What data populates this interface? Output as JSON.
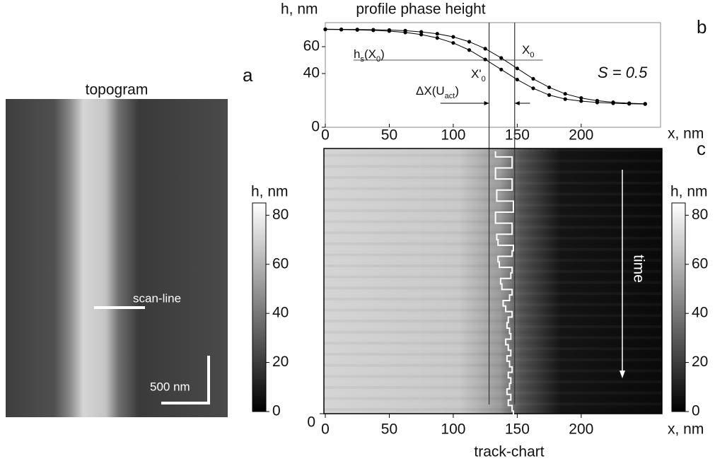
{
  "panel_labels": [
    "a",
    "b",
    "c"
  ],
  "topogram": {
    "title": "topogram",
    "scan_label": "scan-line",
    "scale_label": "500 nm"
  },
  "chart_data": [
    {
      "type": "line",
      "title": "profile phase height",
      "y_label": "h, nm",
      "x_label": "x, nm",
      "x": [
        0,
        12.5,
        25,
        37.5,
        50,
        62.5,
        75,
        87.5,
        100,
        112.5,
        125,
        137.5,
        150,
        162.5,
        175,
        187.5,
        200,
        212.5,
        225,
        237.5,
        250
      ],
      "series": [
        {
          "color": "#000000",
          "values": [
            73.0,
            72.9,
            72.8,
            72.6,
            72.4,
            71.9,
            71.0,
            69.6,
            67.3,
            63.7,
            58.5,
            51.6,
            43.8,
            36.1,
            29.7,
            24.9,
            21.8,
            19.8,
            18.6,
            17.9,
            17.5
          ]
        },
        {
          "color": "#000000",
          "values": [
            72.8,
            72.7,
            72.5,
            72.2,
            71.6,
            70.6,
            69.0,
            66.5,
            62.8,
            57.5,
            50.5,
            43.0,
            35.5,
            29.0,
            24.0,
            21.0,
            19.5,
            18.5,
            17.9,
            17.5,
            17.3
          ]
        }
      ],
      "xlim": [
        0,
        262
      ],
      "xticks": [
        0,
        50,
        100,
        150,
        200
      ],
      "ylim": [
        0,
        80
      ],
      "yticks": [
        0,
        40,
        60
      ],
      "reference_x": [
        128,
        148
      ],
      "reference_level": 50,
      "annotations": [
        [
          {
            "t": "h"
          },
          {
            "t": "s",
            "sub": true
          },
          {
            "t": "(X"
          },
          {
            "t": "0",
            "sub": true
          },
          {
            "t": ")"
          }
        ],
        [
          {
            "t": "X"
          },
          {
            "t": "0",
            "sub": true
          }
        ],
        [
          {
            "t": "X'"
          },
          {
            "t": "0",
            "sub": true
          }
        ],
        [
          {
            "t": "ΔX(U"
          },
          {
            "t": "act",
            "sub": true
          },
          {
            "t": ")"
          }
        ],
        [
          {
            "t": "S = 0.5"
          }
        ]
      ]
    },
    {
      "type": "track",
      "caption": "track-chart",
      "x_label": "x, nm",
      "time_label": "time",
      "xlim": [
        0,
        262
      ],
      "xticks": [
        0,
        50,
        100,
        150,
        200
      ],
      "yticks": [
        0
      ],
      "track": {
        "color": "#ffffff",
        "values": [
          133,
          146,
          146,
          133,
          133,
          146,
          146,
          134,
          134,
          147,
          147,
          133,
          133,
          146,
          146,
          134,
          135,
          147,
          146,
          135,
          136,
          146,
          145,
          137,
          138,
          146,
          144,
          139,
          141,
          146,
          143,
          142,
          144,
          145,
          141,
          143,
          145,
          142,
          144,
          146,
          143,
          145,
          144,
          142,
          145,
          143,
          146,
          147
        ]
      }
    }
  ],
  "colorbars": [
    {
      "label": "h, nm",
      "lim": [
        0,
        85
      ],
      "ticks": [
        0,
        20,
        40,
        60,
        80
      ]
    },
    {
      "label": "h, nm",
      "lim": [
        0,
        85
      ],
      "ticks": [
        0,
        20,
        40,
        60,
        80
      ]
    }
  ]
}
